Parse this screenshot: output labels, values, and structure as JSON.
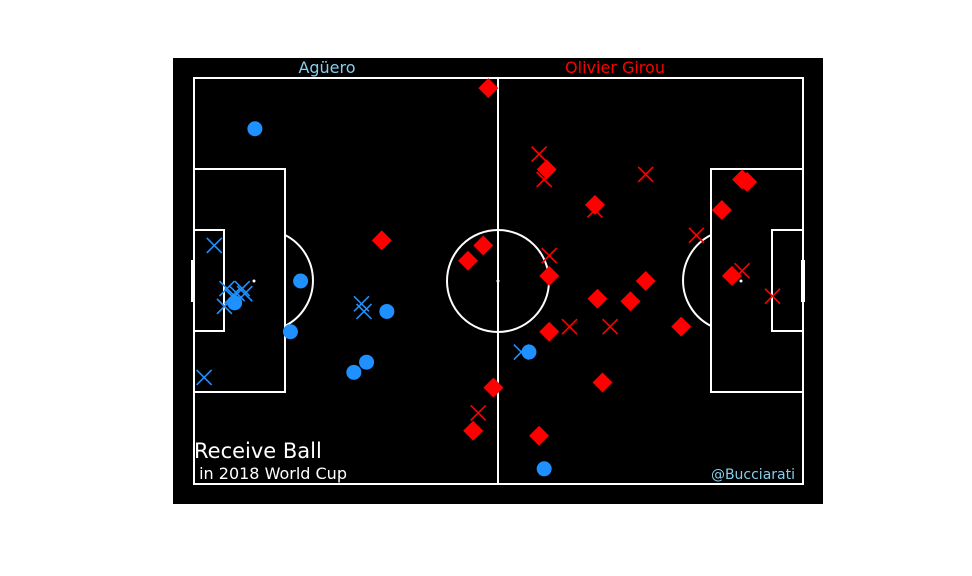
{
  "colors": {
    "background": "#000000",
    "page": "#ffffff",
    "lines": "#ffffff",
    "player_a": "#1e90ff",
    "player_a_title": "#87ceeb",
    "player_b": "#ff0000",
    "credit": "#87ceeb"
  },
  "chart_data": {
    "type": "scatter",
    "pitch": {
      "x_range": [
        0,
        120
      ],
      "y_range": [
        0,
        80
      ],
      "grid": false
    },
    "title": "Receive Ball",
    "subtitle": " in 2018 World Cup",
    "credit": "@Bucciarati",
    "players": [
      {
        "name": "Agüero",
        "color": "#1e90ff",
        "legend": {
          "circle": "",
          "cross": ""
        }
      },
      {
        "name": "Olivier Girou",
        "color": "#ff0000",
        "legend": {
          "diamond": "",
          "cross": ""
        }
      }
    ],
    "series": [
      {
        "player": 0,
        "marker": "circle",
        "points": [
          {
            "x": 12,
            "y": 10
          },
          {
            "x": 8,
            "y": 44.3
          },
          {
            "x": 21,
            "y": 40
          },
          {
            "x": 19,
            "y": 50
          },
          {
            "x": 34,
            "y": 56
          },
          {
            "x": 31.5,
            "y": 58
          },
          {
            "x": 38,
            "y": 46
          },
          {
            "x": 66,
            "y": 54
          },
          {
            "x": 69,
            "y": 77
          }
        ]
      },
      {
        "player": 0,
        "marker": "cross",
        "points": [
          {
            "x": 4,
            "y": 33
          },
          {
            "x": 6.5,
            "y": 41.5
          },
          {
            "x": 7.5,
            "y": 43
          },
          {
            "x": 8.5,
            "y": 42.5
          },
          {
            "x": 9.5,
            "y": 41.5
          },
          {
            "x": 10,
            "y": 42.5
          },
          {
            "x": 6,
            "y": 45
          },
          {
            "x": 33,
            "y": 44.5
          },
          {
            "x": 33.5,
            "y": 46
          },
          {
            "x": 2,
            "y": 59
          },
          {
            "x": 64.5,
            "y": 54
          }
        ]
      },
      {
        "player": 1,
        "marker": "diamond",
        "points": [
          {
            "x": 58,
            "y": 2
          },
          {
            "x": 69.5,
            "y": 18
          },
          {
            "x": 79,
            "y": 25
          },
          {
            "x": 108,
            "y": 20
          },
          {
            "x": 109,
            "y": 20.5
          },
          {
            "x": 104,
            "y": 26
          },
          {
            "x": 37,
            "y": 32
          },
          {
            "x": 57,
            "y": 33
          },
          {
            "x": 54,
            "y": 36
          },
          {
            "x": 70,
            "y": 39
          },
          {
            "x": 79.5,
            "y": 43.5
          },
          {
            "x": 89,
            "y": 40
          },
          {
            "x": 86,
            "y": 44
          },
          {
            "x": 106,
            "y": 39
          },
          {
            "x": 70,
            "y": 50
          },
          {
            "x": 96,
            "y": 49
          },
          {
            "x": 80.5,
            "y": 60
          },
          {
            "x": 59,
            "y": 61
          },
          {
            "x": 55,
            "y": 69.5
          },
          {
            "x": 68,
            "y": 70.5
          }
        ]
      },
      {
        "player": 1,
        "marker": "cross",
        "points": [
          {
            "x": 68,
            "y": 15
          },
          {
            "x": 69,
            "y": 20
          },
          {
            "x": 79,
            "y": 26
          },
          {
            "x": 89,
            "y": 19
          },
          {
            "x": 99,
            "y": 31
          },
          {
            "x": 70,
            "y": 35
          },
          {
            "x": 108,
            "y": 38
          },
          {
            "x": 114,
            "y": 43
          },
          {
            "x": 74,
            "y": 49
          },
          {
            "x": 82,
            "y": 49
          },
          {
            "x": 56,
            "y": 66
          }
        ]
      }
    ]
  }
}
